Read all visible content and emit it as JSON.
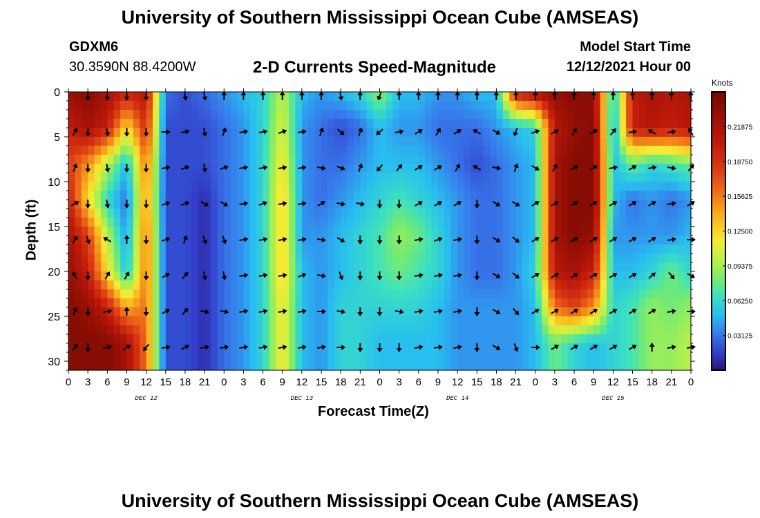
{
  "header": {
    "title": "University of Southern Mississippi Ocean Cube (AMSEAS)",
    "station_id": "GDXM6",
    "coordinates": "30.3590N  88.4200W",
    "subtitle": "2-D Currents Speed-Magnitude",
    "model_start_label": "Model Start Time",
    "model_start_value": "12/12/2021 Hour 00"
  },
  "footer": {
    "title": "University of Southern Mississippi Ocean Cube (AMSEAS)"
  },
  "chart_data": {
    "type": "heatmap",
    "title": "2-D Currents Speed-Magnitude",
    "xlabel": "Forecast Time(Z)",
    "ylabel": "Depth (ft)",
    "xlim": [
      0,
      96
    ],
    "ylim": [
      31,
      0
    ],
    "x_tick_labels": [
      "0",
      "3",
      "6",
      "9",
      "12",
      "15",
      "18",
      "21",
      "0",
      "3",
      "6",
      "9",
      "12",
      "15",
      "18",
      "21",
      "0",
      "3",
      "6",
      "9",
      "12",
      "15",
      "18",
      "21",
      "0",
      "3",
      "6",
      "9",
      "12",
      "15",
      "18",
      "21",
      "0"
    ],
    "y_ticks": [
      0,
      5,
      10,
      15,
      20,
      25,
      30
    ],
    "day_labels": [
      {
        "hour": 12,
        "label": "DEC 12"
      },
      {
        "hour": 36,
        "label": "DEC 13"
      },
      {
        "hour": 60,
        "label": "DEC 14"
      },
      {
        "hour": 84,
        "label": "DEC 15"
      }
    ],
    "colorbar": {
      "title": "Knots",
      "range": [
        0,
        0.25
      ],
      "ticks": [
        {
          "value": 0.03125,
          "label": "0.03125"
        },
        {
          "value": 0.0625,
          "label": "0.06250"
        },
        {
          "value": 0.09375,
          "label": "0.09375"
        },
        {
          "value": 0.125,
          "label": "0.12500"
        },
        {
          "value": 0.15625,
          "label": "0.15625"
        },
        {
          "value": 0.1875,
          "label": "0.18750"
        },
        {
          "value": 0.21875,
          "label": "0.21875"
        }
      ]
    },
    "speed_knots": {
      "hours": [
        0,
        3,
        6,
        9,
        12,
        15,
        18,
        21,
        24,
        27,
        30,
        33,
        36,
        39,
        42,
        45,
        48,
        51,
        54,
        57,
        60,
        63,
        66,
        69,
        72,
        75,
        78,
        81,
        84,
        87,
        90,
        93,
        96
      ],
      "depths_ft": [
        0,
        4,
        8,
        12,
        16,
        20,
        24,
        28,
        31
      ],
      "values": [
        [
          0.23,
          0.24,
          0.22,
          0.2,
          0.21,
          0.03,
          0.02,
          0.03,
          0.04,
          0.05,
          0.06,
          0.1,
          0.05,
          0.04,
          0.05,
          0.06,
          0.09,
          0.05,
          0.05,
          0.04,
          0.04,
          0.05,
          0.05,
          0.2,
          0.22,
          0.23,
          0.24,
          0.23,
          0.05,
          0.2,
          0.22,
          0.21,
          0.22
        ],
        [
          0.2,
          0.22,
          0.2,
          0.12,
          0.19,
          0.02,
          0.02,
          0.02,
          0.03,
          0.04,
          0.06,
          0.11,
          0.04,
          0.03,
          0.02,
          0.03,
          0.05,
          0.04,
          0.04,
          0.03,
          0.03,
          0.03,
          0.04,
          0.05,
          0.06,
          0.21,
          0.23,
          0.24,
          0.04,
          0.2,
          0.21,
          0.2,
          0.21
        ],
        [
          0.18,
          0.15,
          0.1,
          0.05,
          0.16,
          0.02,
          0.02,
          0.02,
          0.03,
          0.04,
          0.06,
          0.12,
          0.04,
          0.03,
          0.03,
          0.04,
          0.05,
          0.05,
          0.05,
          0.04,
          0.03,
          0.02,
          0.03,
          0.04,
          0.05,
          0.22,
          0.24,
          0.24,
          0.05,
          0.08,
          0.06,
          0.07,
          0.08
        ],
        [
          0.2,
          0.12,
          0.06,
          0.03,
          0.15,
          0.02,
          0.02,
          0.01,
          0.03,
          0.04,
          0.06,
          0.13,
          0.04,
          0.03,
          0.04,
          0.05,
          0.06,
          0.07,
          0.06,
          0.05,
          0.04,
          0.03,
          0.03,
          0.04,
          0.05,
          0.22,
          0.24,
          0.24,
          0.05,
          0.03,
          0.04,
          0.03,
          0.04
        ],
        [
          0.22,
          0.18,
          0.1,
          0.04,
          0.16,
          0.02,
          0.02,
          0.01,
          0.03,
          0.04,
          0.06,
          0.13,
          0.04,
          0.04,
          0.05,
          0.06,
          0.07,
          0.09,
          0.08,
          0.06,
          0.04,
          0.03,
          0.03,
          0.04,
          0.05,
          0.22,
          0.24,
          0.23,
          0.04,
          0.04,
          0.04,
          0.04,
          0.05
        ],
        [
          0.23,
          0.2,
          0.12,
          0.05,
          0.16,
          0.02,
          0.02,
          0.01,
          0.03,
          0.04,
          0.06,
          0.13,
          0.05,
          0.04,
          0.05,
          0.06,
          0.07,
          0.08,
          0.07,
          0.06,
          0.04,
          0.03,
          0.03,
          0.04,
          0.06,
          0.21,
          0.22,
          0.2,
          0.05,
          0.05,
          0.06,
          0.08,
          0.06
        ],
        [
          0.24,
          0.23,
          0.2,
          0.14,
          0.16,
          0.02,
          0.02,
          0.01,
          0.03,
          0.04,
          0.06,
          0.12,
          0.05,
          0.04,
          0.06,
          0.06,
          0.06,
          0.06,
          0.06,
          0.05,
          0.04,
          0.04,
          0.04,
          0.04,
          0.05,
          0.16,
          0.18,
          0.15,
          0.06,
          0.07,
          0.09,
          0.08,
          0.09
        ],
        [
          0.24,
          0.24,
          0.24,
          0.22,
          0.16,
          0.02,
          0.02,
          0.01,
          0.03,
          0.04,
          0.06,
          0.12,
          0.05,
          0.04,
          0.06,
          0.06,
          0.05,
          0.05,
          0.05,
          0.05,
          0.04,
          0.04,
          0.04,
          0.04,
          0.05,
          0.08,
          0.06,
          0.05,
          0.06,
          0.07,
          0.09,
          0.09,
          0.1
        ],
        [
          0.24,
          0.24,
          0.24,
          0.22,
          0.16,
          0.02,
          0.02,
          0.01,
          0.03,
          0.04,
          0.06,
          0.12,
          0.05,
          0.04,
          0.06,
          0.06,
          0.05,
          0.05,
          0.05,
          0.05,
          0.04,
          0.04,
          0.04,
          0.04,
          0.05,
          0.08,
          0.06,
          0.05,
          0.06,
          0.07,
          0.09,
          0.09,
          0.1
        ]
      ]
    },
    "direction_arrows": {
      "hours": [
        1,
        3,
        6,
        9,
        12,
        15,
        18,
        21,
        24,
        27,
        30,
        33,
        36,
        39,
        42,
        45,
        48,
        51,
        54,
        57,
        60,
        63,
        66,
        69,
        72,
        75,
        78,
        81,
        84,
        87,
        90,
        93,
        96
      ],
      "depths_ft": [
        0,
        4,
        8,
        12,
        16,
        20,
        24,
        28
      ],
      "angles_deg": [
        [
          null,
          180,
          180,
          180,
          180,
          null,
          170,
          170,
          0,
          0,
          0,
          0,
          0,
          0,
          170,
          0,
          200,
          0,
          0,
          0,
          0,
          0,
          0,
          0,
          0,
          0,
          0,
          0,
          0,
          0,
          0,
          0,
          0
        ],
        [
          30,
          180,
          170,
          180,
          180,
          90,
          80,
          170,
          20,
          80,
          80,
          70,
          80,
          20,
          130,
          20,
          230,
          80,
          60,
          30,
          60,
          300,
          120,
          200,
          70,
          60,
          30,
          60,
          40,
          80,
          300,
          80,
          330
        ],
        [
          20,
          180,
          170,
          180,
          180,
          80,
          70,
          170,
          70,
          80,
          80,
          80,
          80,
          100,
          110,
          20,
          220,
          40,
          60,
          60,
          30,
          300,
          100,
          20,
          120,
          30,
          60,
          60,
          80,
          60,
          80,
          100,
          40
        ],
        [
          60,
          180,
          170,
          180,
          180,
          70,
          70,
          120,
          120,
          80,
          70,
          80,
          80,
          60,
          100,
          100,
          180,
          180,
          60,
          60,
          60,
          180,
          120,
          120,
          60,
          60,
          60,
          60,
          60,
          60,
          60,
          80,
          60
        ],
        [
          30,
          160,
          300,
          0,
          180,
          70,
          20,
          160,
          160,
          80,
          80,
          80,
          80,
          100,
          120,
          180,
          180,
          180,
          80,
          70,
          80,
          180,
          120,
          130,
          60,
          60,
          60,
          60,
          60,
          60,
          60,
          80,
          90
        ],
        [
          330,
          180,
          30,
          30,
          180,
          60,
          40,
          170,
          170,
          80,
          80,
          80,
          70,
          100,
          160,
          180,
          180,
          180,
          80,
          80,
          80,
          180,
          120,
          130,
          60,
          60,
          60,
          60,
          60,
          60,
          50,
          140,
          120
        ],
        [
          20,
          180,
          80,
          0,
          180,
          60,
          40,
          100,
          100,
          80,
          80,
          80,
          80,
          90,
          100,
          180,
          180,
          100,
          80,
          80,
          80,
          180,
          120,
          140,
          60,
          60,
          60,
          60,
          60,
          60,
          60,
          80,
          90
        ],
        [
          40,
          180,
          80,
          60,
          220,
          80,
          60,
          80,
          80,
          80,
          80,
          80,
          80,
          80,
          90,
          180,
          180,
          180,
          80,
          80,
          80,
          180,
          120,
          160,
          90,
          60,
          60,
          60,
          60,
          60,
          0,
          80,
          80
        ]
      ]
    }
  },
  "colors": {
    "frame": "#000000",
    "arrow": "#000000"
  }
}
